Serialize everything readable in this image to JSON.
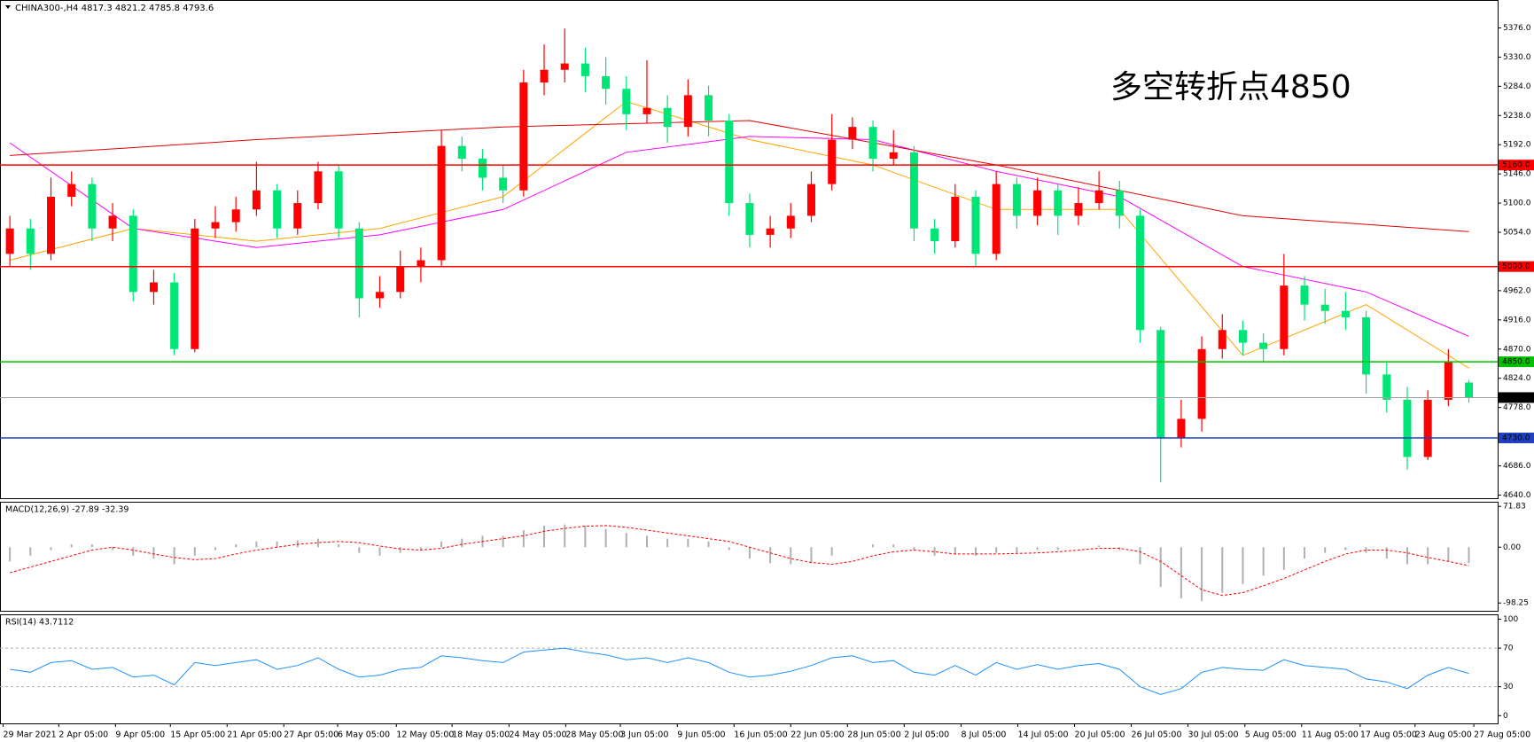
{
  "chart_data": [
    {
      "type": "candlestick",
      "title": "CHINA300-,H4  4817.3 4821.2 4785.8 4793.6",
      "annotation": "多空转折点4850",
      "annotation_color": "#ff0000",
      "up_color": "#ff0000",
      "down_color": "#00e676",
      "xlim": [
        -0.48,
        72.4
      ],
      "xticks": [
        {
          "value": -0.33,
          "label": "29 Mar 2021"
        },
        {
          "value": 2.38,
          "label": "2 Apr 05:00"
        },
        {
          "value": 5.14,
          "label": "9 Apr 05:00"
        },
        {
          "value": 7.81,
          "label": "15 Apr 05:00"
        },
        {
          "value": 10.57,
          "label": "21 Apr 05:00"
        },
        {
          "value": 13.33,
          "label": "27 Apr 05:00"
        },
        {
          "value": 15.95,
          "label": "6 May 05:00"
        },
        {
          "value": 18.81,
          "label": "12 May 05:00"
        },
        {
          "value": 21.52,
          "label": "18 May 05:00"
        },
        {
          "value": 24.29,
          "label": "24 May 05:00"
        },
        {
          "value": 27.05,
          "label": "28 May 05:00"
        },
        {
          "value": 29.71,
          "label": "3 Jun 05:00"
        },
        {
          "value": 32.48,
          "label": "9 Jun 05:00"
        },
        {
          "value": 35.24,
          "label": "16 Jun 05:00"
        },
        {
          "value": 38,
          "label": "22 Jun 05:00"
        },
        {
          "value": 40.76,
          "label": "28 Jun 05:00"
        },
        {
          "value": 43.52,
          "label": "2 Jul 05:00"
        },
        {
          "value": 46.29,
          "label": "8 Jul 05:00"
        },
        {
          "value": 49.05,
          "label": "14 Jul 05:00"
        },
        {
          "value": 51.81,
          "label": "20 Jul 05:00"
        },
        {
          "value": 54.57,
          "label": "26 Jul 05:00"
        },
        {
          "value": 57.33,
          "label": "30 Jul 05:00"
        },
        {
          "value": 60.1,
          "label": "5 Aug 05:00"
        },
        {
          "value": 62.86,
          "label": "11 Aug 05:00"
        },
        {
          "value": 65.71,
          "label": "17 Aug 05:00"
        },
        {
          "value": 68.38,
          "label": "23 Aug 05:00"
        },
        {
          "value": 71.24,
          "label": "27 Aug 05:00"
        }
      ],
      "ylim": [
        4635,
        5420
      ],
      "yticks": [
        {
          "value": 5376,
          "label": "5376.0"
        },
        {
          "value": 5330,
          "label": "5330.0"
        },
        {
          "value": 5284,
          "label": "5284.0"
        },
        {
          "value": 5238,
          "label": "5238.0"
        },
        {
          "value": 5192,
          "label": "5192.0"
        },
        {
          "value": 5146,
          "label": "5146.0"
        },
        {
          "value": 5100,
          "label": "5100.0"
        },
        {
          "value": 5054,
          "label": "5054.0"
        },
        {
          "value": 4962,
          "label": "4962.0"
        },
        {
          "value": 4916,
          "label": "4916.0"
        },
        {
          "value": 4870,
          "label": "4870.0"
        },
        {
          "value": 4824,
          "label": "4824.0"
        },
        {
          "value": 4778,
          "label": "4778.0"
        },
        {
          "value": 4686,
          "label": "4686.0"
        },
        {
          "value": 4640,
          "label": "4640.0"
        }
      ],
      "open": [
        5020,
        5060,
        5020,
        5110,
        5130,
        5060,
        5080,
        4960,
        4975,
        4870,
        5060,
        5070,
        5090,
        5120,
        5060,
        5100,
        5150,
        5060,
        4950,
        4960,
        5000,
        5010,
        5190,
        5170,
        5140,
        5120,
        5290,
        5310,
        5320,
        5300,
        5280,
        5240,
        5250,
        5220,
        5270,
        5230,
        5100,
        5050,
        5060,
        5080,
        5130,
        5200,
        5220,
        5170,
        5180,
        5060,
        5040,
        5110,
        5020,
        5130,
        5080,
        5120,
        5080,
        5100,
        5120,
        5080,
        4900,
        4730,
        4760,
        4870,
        4900,
        4880,
        4870,
        4970,
        4940,
        4930,
        4920,
        4830,
        4790,
        4700,
        4790,
        4817.3
      ],
      "high": [
        5080,
        5075,
        5140,
        5150,
        5140,
        5100,
        5090,
        4995,
        4990,
        5075,
        5095,
        5110,
        5165,
        5130,
        5120,
        5165,
        5160,
        5070,
        4985,
        5025,
        5030,
        5215,
        5205,
        5185,
        5160,
        5310,
        5350,
        5375,
        5345,
        5330,
        5300,
        5325,
        5270,
        5295,
        5285,
        5240,
        5115,
        5080,
        5100,
        5150,
        5240,
        5235,
        5230,
        5215,
        5190,
        5075,
        5130,
        5120,
        5150,
        5140,
        5140,
        5130,
        5125,
        5150,
        5135,
        5090,
        4905,
        4790,
        4890,
        4925,
        4915,
        4895,
        5020,
        4985,
        4965,
        4960,
        4930,
        4850,
        4810,
        4805,
        4870,
        4821.2
      ],
      "low": [
        5000,
        4995,
        5010,
        5095,
        5040,
        5040,
        4945,
        4940,
        4860,
        4865,
        5045,
        5055,
        5080,
        5045,
        5050,
        5090,
        5045,
        4920,
        4935,
        4950,
        4975,
        5000,
        5150,
        5120,
        5100,
        5110,
        5270,
        5290,
        5275,
        5255,
        5215,
        5225,
        5195,
        5205,
        5205,
        5080,
        5030,
        5030,
        5045,
        5070,
        5120,
        5185,
        5150,
        5160,
        5040,
        5020,
        5030,
        5000,
        5010,
        5060,
        5065,
        5050,
        5065,
        5090,
        5060,
        4880,
        4660,
        4715,
        4740,
        4855,
        4860,
        4850,
        4860,
        4915,
        4910,
        4900,
        4800,
        4770,
        4680,
        4695,
        4780,
        4785.8
      ],
      "close": [
        5060,
        5020,
        5110,
        5130,
        5060,
        5080,
        4960,
        4975,
        4870,
        5060,
        5070,
        5090,
        5120,
        5060,
        5100,
        5150,
        5060,
        4950,
        4960,
        5000,
        5010,
        5190,
        5170,
        5140,
        5120,
        5290,
        5310,
        5320,
        5300,
        5280,
        5240,
        5250,
        5220,
        5270,
        5230,
        5100,
        5050,
        5060,
        5080,
        5130,
        5200,
        5220,
        5170,
        5180,
        5060,
        5040,
        5110,
        5020,
        5130,
        5080,
        5120,
        5080,
        5100,
        5120,
        5080,
        4900,
        4730,
        4760,
        4870,
        4900,
        4880,
        4870,
        4970,
        4940,
        4930,
        4920,
        4830,
        4790,
        4700,
        4790,
        4850,
        4793.6
      ],
      "moving_averages": [
        {
          "color": "#ffa500",
          "x": [
            0,
            6,
            12,
            18,
            24,
            30,
            36,
            42,
            48,
            54,
            60,
            66,
            71
          ],
          "values": [
            5010,
            5060,
            5040,
            5060,
            5110,
            5260,
            5200,
            5160,
            5090,
            5090,
            4860,
            4940,
            4840
          ]
        },
        {
          "color": "#ff00ff",
          "x": [
            0,
            6,
            12,
            18,
            24,
            30,
            36,
            42,
            48,
            54,
            60,
            66,
            71
          ],
          "values": [
            5195,
            5060,
            5030,
            5050,
            5090,
            5180,
            5205,
            5200,
            5150,
            5110,
            5000,
            4960,
            4890
          ]
        },
        {
          "color": "#e00000",
          "x": [
            0,
            12,
            24,
            36,
            48,
            60,
            71
          ],
          "values": [
            5175,
            5200,
            5220,
            5230,
            5160,
            5080,
            5055
          ]
        }
      ],
      "levels": [
        {
          "value": 5160,
          "label": "5160.0",
          "color": "#ff0000",
          "box": "#ff0000"
        },
        {
          "value": 5000,
          "label": "5000.0",
          "color": "#ff0000",
          "box": "#ff0000"
        },
        {
          "value": 4850,
          "label": "4850.0",
          "color": "#00c000",
          "box": "#00c000"
        },
        {
          "value": 4793.6,
          "label": "4793.6",
          "color": "#a0a0a0",
          "box": "#000000"
        },
        {
          "value": 4730,
          "label": "4730.0",
          "color": "#2040c0",
          "box": "#2040c0"
        }
      ]
    },
    {
      "type": "macd",
      "title": "MACD(12,26,9) -27.89 -32.39",
      "ylim": [
        -112,
        80
      ],
      "yticks": [
        71.83,
        {
          "value": 0,
          "label": "0.00"
        },
        -98.25
      ],
      "hist_color": "#b0b0b0",
      "signal_color": "#ff0000",
      "histogram": [
        -25,
        -15,
        -5,
        5,
        5,
        -5,
        -15,
        -20,
        -30,
        -15,
        -5,
        5,
        10,
        10,
        12,
        15,
        5,
        -10,
        -15,
        -10,
        -5,
        10,
        15,
        20,
        20,
        30,
        38,
        40,
        38,
        32,
        25,
        20,
        15,
        15,
        10,
        -5,
        -20,
        -28,
        -30,
        -28,
        -15,
        0,
        5,
        5,
        -5,
        -15,
        -12,
        -15,
        -10,
        -10,
        -5,
        -5,
        0,
        3,
        -5,
        -30,
        -70,
        -90,
        -95,
        -80,
        -65,
        -50,
        -40,
        -20,
        -10,
        -5,
        -10,
        -20,
        -30,
        -30,
        -25,
        -27.89
      ],
      "signal": [
        -45,
        -35,
        -25,
        -15,
        -5,
        0,
        -5,
        -12,
        -18,
        -22,
        -20,
        -12,
        -5,
        0,
        5,
        8,
        10,
        8,
        2,
        -3,
        -5,
        -2,
        5,
        10,
        15,
        20,
        28,
        33,
        37,
        38,
        35,
        30,
        25,
        20,
        15,
        10,
        0,
        -10,
        -20,
        -27,
        -30,
        -25,
        -15,
        -8,
        -5,
        -8,
        -12,
        -12,
        -12,
        -11,
        -10,
        -8,
        -5,
        -2,
        -2,
        -8,
        -25,
        -50,
        -75,
        -85,
        -80,
        -68,
        -55,
        -40,
        -25,
        -12,
        -5,
        -5,
        -10,
        -18,
        -25,
        -32.39
      ]
    },
    {
      "type": "rsi",
      "title": "RSI(14) 43.7112",
      "ylim": [
        -8,
        105
      ],
      "yticks": [
        100,
        70,
        30,
        0
      ],
      "levels": [
        70,
        30
      ],
      "color": "#1e90ff",
      "values": [
        48,
        45,
        55,
        57,
        48,
        50,
        40,
        42,
        32,
        55,
        52,
        55,
        58,
        48,
        52,
        60,
        48,
        40,
        42,
        48,
        50,
        62,
        60,
        57,
        55,
        66,
        68,
        70,
        66,
        63,
        58,
        60,
        55,
        60,
        55,
        45,
        40,
        42,
        46,
        52,
        60,
        62,
        55,
        57,
        45,
        42,
        52,
        42,
        55,
        48,
        53,
        48,
        52,
        54,
        48,
        30,
        22,
        28,
        45,
        50,
        48,
        47,
        58,
        52,
        50,
        48,
        38,
        35,
        28,
        42,
        50,
        43.7112
      ]
    }
  ]
}
